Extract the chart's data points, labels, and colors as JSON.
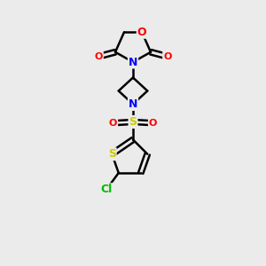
{
  "bg_color": "#ebebeb",
  "bond_color": "#000000",
  "bond_width": 1.8,
  "atom_colors": {
    "O": "#ff0000",
    "N": "#0000ff",
    "S": "#cccc00",
    "Cl": "#00bb00",
    "C": "#000000"
  },
  "font_size_atoms": 9,
  "font_size_labels": 8,
  "xlim": [
    0,
    10
  ],
  "ylim": [
    0,
    12
  ]
}
